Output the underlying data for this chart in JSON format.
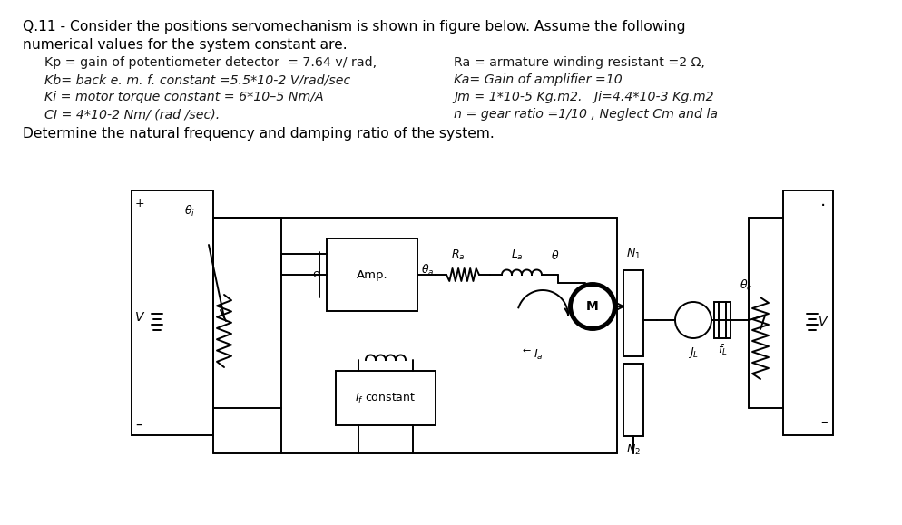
{
  "title_line1": "Q.11 - Consider the positions servomechanism is shown in figure below. Assume the following",
  "title_line2": "numerical values for the system constant are.",
  "param_rows": [
    {
      "left": "  Kp = gain of potentiometer detector  = 7.64 v/ rad,",
      "right": "Ra = armature winding resistant =2 Ω,"
    },
    {
      "left": "  Kb= back e. m. f. constant =5.5*10-2 V/rad/sec",
      "right": "Ka= Gain of amplifier =10"
    },
    {
      "left": "  Ki = motor torque constant = 6*10–5 Nm/A",
      "right": "Jm = 1*10-5 Kg.m2.   Ji=4.4*10-3 Kg.m2"
    },
    {
      "left": "  CI = 4*10-2 Nm/ (rad /sec).",
      "right": "n = gear ratio =1/10 , Neglect Cm and la"
    }
  ],
  "footer": "Determine the natural frequency and damping ratio of the system.",
  "bg_color": "#ffffff",
  "text_color": "#1a1a1a",
  "lw": 1.4
}
